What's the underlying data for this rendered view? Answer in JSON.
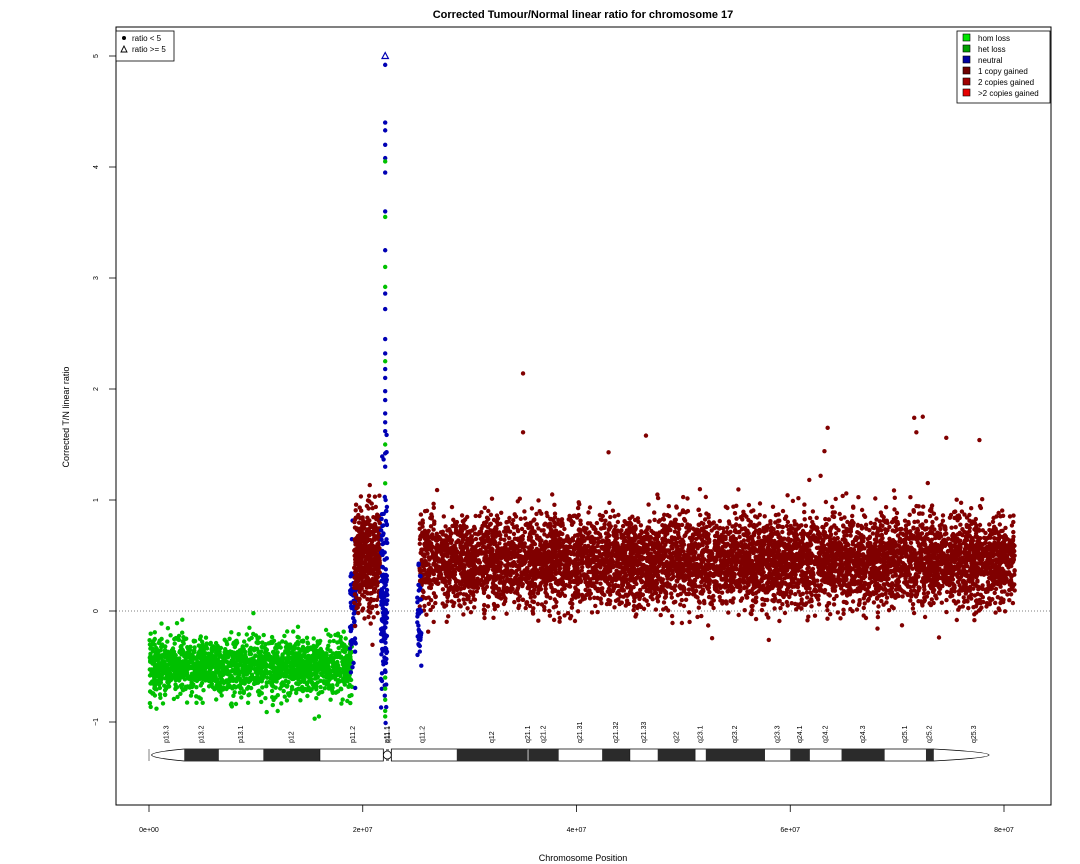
{
  "chart_data": {
    "type": "scatter",
    "title": "Corrected Tumour/Normal linear ratio for chromosome  17",
    "xlabel": "Chromosome Position",
    "ylabel": "Corrected T/N linear ratio",
    "xlim": [
      -4000000,
      85000000
    ],
    "ylim": [
      -1.75,
      5.3
    ],
    "x_ticks": [
      0,
      20000000,
      40000000,
      60000000,
      80000000
    ],
    "x_tick_labels": [
      "0e+00",
      "2e+07",
      "4e+07",
      "6e+07",
      "8e+07"
    ],
    "y_ticks": [
      -1,
      0,
      1,
      2,
      3,
      4,
      5
    ],
    "y_tick_labels": [
      "−1",
      "0",
      "1",
      "2",
      "3",
      "4",
      "5"
    ],
    "reference_line_y": 0,
    "legend_shape": {
      "placement": "top-left",
      "items": [
        {
          "symbol": "dot",
          "label": "ratio < 5"
        },
        {
          "symbol": "triangle",
          "label": "ratio >= 5"
        }
      ]
    },
    "legend_state": {
      "placement": "top-right",
      "items": [
        {
          "label": "hom loss",
          "color": "#00e600"
        },
        {
          "label": "het loss",
          "color": "#00a000"
        },
        {
          "label": "neutral",
          "color": "#0000a0"
        },
        {
          "label": "1 copy gained",
          "color": "#6e0000"
        },
        {
          "label": "2 copies gained",
          "color": "#a00000"
        },
        {
          "label": ">2 copies gained",
          "color": "#e60000"
        }
      ]
    },
    "segments": [
      {
        "state": "het loss",
        "color": "#00c000",
        "x_range": [
          0,
          19000000
        ],
        "mean": -0.5,
        "spread": 0.13,
        "n": 1800
      },
      {
        "state": "neutral",
        "color": "#0000b4",
        "x_range": [
          18800000,
          19400000
        ],
        "mean": 0.05,
        "spread": 0.3,
        "n": 60
      },
      {
        "state": "1 copy gained",
        "color": "#800000",
        "x_range": [
          19200000,
          21600000
        ],
        "mean": 0.45,
        "spread": 0.22,
        "n": 500
      },
      {
        "state": "neutral",
        "color": "#0000b4",
        "x_range": [
          21700000,
          22300000
        ],
        "mean": 0.1,
        "spread": 0.5,
        "n": 150
      },
      {
        "state": "1 copy gained",
        "color": "#800000",
        "x_range": [
          25300000,
          81000000
        ],
        "mean": 0.45,
        "spread": 0.2,
        "n": 7000
      },
      {
        "state": "neutral",
        "color": "#0000b4",
        "x_range": [
          25100000,
          25500000
        ],
        "mean": -0.1,
        "spread": 0.2,
        "n": 40
      }
    ],
    "spike_points": [
      {
        "x": 22100000,
        "y": 4.92,
        "color": "#0000b4"
      },
      {
        "x": 22100000,
        "y": 4.4,
        "color": "#0000b4"
      },
      {
        "x": 22100000,
        "y": 4.33,
        "color": "#0000b4"
      },
      {
        "x": 22100000,
        "y": 4.2,
        "color": "#0000b4"
      },
      {
        "x": 22100000,
        "y": 4.08,
        "color": "#0000b4"
      },
      {
        "x": 22100000,
        "y": 4.05,
        "color": "#00c000"
      },
      {
        "x": 22100000,
        "y": 3.95,
        "color": "#0000b4"
      },
      {
        "x": 22100000,
        "y": 3.6,
        "color": "#0000b4"
      },
      {
        "x": 22100000,
        "y": 3.55,
        "color": "#00c000"
      },
      {
        "x": 22100000,
        "y": 3.25,
        "color": "#0000b4"
      },
      {
        "x": 22100000,
        "y": 3.1,
        "color": "#00c000"
      },
      {
        "x": 22100000,
        "y": 2.92,
        "color": "#00c000"
      },
      {
        "x": 22100000,
        "y": 2.86,
        "color": "#0000b4"
      },
      {
        "x": 22100000,
        "y": 2.72,
        "color": "#0000b4"
      },
      {
        "x": 22100000,
        "y": 2.45,
        "color": "#0000b4"
      },
      {
        "x": 22100000,
        "y": 2.32,
        "color": "#0000b4"
      },
      {
        "x": 22100000,
        "y": 2.25,
        "color": "#00c000"
      },
      {
        "x": 22100000,
        "y": 2.18,
        "color": "#0000b4"
      },
      {
        "x": 22100000,
        "y": 2.1,
        "color": "#0000b4"
      },
      {
        "x": 22100000,
        "y": 1.98,
        "color": "#0000b4"
      },
      {
        "x": 22100000,
        "y": 1.9,
        "color": "#0000b4"
      },
      {
        "x": 22100000,
        "y": 1.78,
        "color": "#0000b4"
      },
      {
        "x": 22100000,
        "y": 1.7,
        "color": "#0000b4"
      },
      {
        "x": 22100000,
        "y": 1.62,
        "color": "#0000b4"
      },
      {
        "x": 22100000,
        "y": 1.5,
        "color": "#00c000"
      },
      {
        "x": 22100000,
        "y": 1.42,
        "color": "#0000b4"
      },
      {
        "x": 22100000,
        "y": 1.3,
        "color": "#0000b4"
      },
      {
        "x": 22100000,
        "y": 1.15,
        "color": "#00c000"
      },
      {
        "x": 22100000,
        "y": -0.6,
        "color": "#00c000"
      },
      {
        "x": 22100000,
        "y": -0.7,
        "color": "#00c000"
      },
      {
        "x": 22100000,
        "y": -0.8,
        "color": "#00c000"
      },
      {
        "x": 22100000,
        "y": -0.9,
        "color": "#00c000"
      },
      {
        "x": 22100000,
        "y": -0.95,
        "color": "#00c000"
      }
    ],
    "triangle_points": [
      {
        "x": 22100000,
        "y": 5.0
      }
    ],
    "outlier_points": [
      {
        "x": 35000000,
        "y": 2.14,
        "color": "#800000"
      },
      {
        "x": 35000000,
        "y": 1.61,
        "color": "#800000"
      },
      {
        "x": 46500000,
        "y": 1.58,
        "color": "#800000"
      },
      {
        "x": 63500000,
        "y": 1.65,
        "color": "#800000"
      },
      {
        "x": 71600000,
        "y": 1.74,
        "color": "#800000"
      },
      {
        "x": 72400000,
        "y": 1.75,
        "color": "#800000"
      },
      {
        "x": 71800000,
        "y": 1.61,
        "color": "#800000"
      },
      {
        "x": 74600000,
        "y": 1.56,
        "color": "#800000"
      },
      {
        "x": 77700000,
        "y": 1.54,
        "color": "#800000"
      },
      {
        "x": 63200000,
        "y": 1.44,
        "color": "#800000"
      },
      {
        "x": 43000000,
        "y": 1.43,
        "color": "#800000"
      },
      {
        "x": 15900000,
        "y": -0.95,
        "color": "#00c000"
      },
      {
        "x": 15500000,
        "y": -0.97,
        "color": "#00c000"
      },
      {
        "x": 700000,
        "y": -0.88,
        "color": "#00c000"
      }
    ],
    "ideogram": {
      "chromosome_length": 81000000,
      "centromere": 22300000,
      "bands": [
        {
          "label": "p13.3",
          "start": 0,
          "end": 3300000,
          "stain": "white"
        },
        {
          "label": "p13.2",
          "start": 3300000,
          "end": 6500000,
          "stain": "dark"
        },
        {
          "label": "p13.1",
          "start": 6500000,
          "end": 10700000,
          "stain": "white"
        },
        {
          "label": "p12",
          "start": 10700000,
          "end": 16000000,
          "stain": "dark"
        },
        {
          "label": "p11.2",
          "start": 16000000,
          "end": 22200000,
          "stain": "white"
        },
        {
          "label": "p11.1",
          "start": 22200000,
          "end": 22300000,
          "stain": "white"
        },
        {
          "label": "q11.1",
          "start": 22300000,
          "end": 22400000,
          "stain": "white"
        },
        {
          "label": "q11.2",
          "start": 22400000,
          "end": 28800000,
          "stain": "white"
        },
        {
          "label": "q12",
          "start": 28800000,
          "end": 35400000,
          "stain": "dark"
        },
        {
          "label": "q21.1",
          "start": 35400000,
          "end": 35500000,
          "stain": "white"
        },
        {
          "label": "q21.2",
          "start": 35500000,
          "end": 38300000,
          "stain": "dark"
        },
        {
          "label": "q21.31",
          "start": 38300000,
          "end": 42400000,
          "stain": "white"
        },
        {
          "label": "q21.32",
          "start": 42400000,
          "end": 45000000,
          "stain": "dark"
        },
        {
          "label": "q21.33",
          "start": 45000000,
          "end": 47600000,
          "stain": "white"
        },
        {
          "label": "q22",
          "start": 47600000,
          "end": 51100000,
          "stain": "dark"
        },
        {
          "label": "q23.1",
          "start": 51100000,
          "end": 52100000,
          "stain": "white"
        },
        {
          "label": "q23.2",
          "start": 52100000,
          "end": 57600000,
          "stain": "dark"
        },
        {
          "label": "q23.3",
          "start": 57600000,
          "end": 60000000,
          "stain": "white"
        },
        {
          "label": "q24.1",
          "start": 60000000,
          "end": 61800000,
          "stain": "dark"
        },
        {
          "label": "q24.2",
          "start": 61800000,
          "end": 64800000,
          "stain": "white"
        },
        {
          "label": "q24.3",
          "start": 64800000,
          "end": 68800000,
          "stain": "dark"
        },
        {
          "label": "q25.1",
          "start": 68800000,
          "end": 72700000,
          "stain": "white"
        },
        {
          "label": "q25.2",
          "start": 72700000,
          "end": 73400000,
          "stain": "dark"
        },
        {
          "label": "q25.3",
          "start": 73400000,
          "end": 81000000,
          "stain": "white"
        }
      ]
    }
  }
}
